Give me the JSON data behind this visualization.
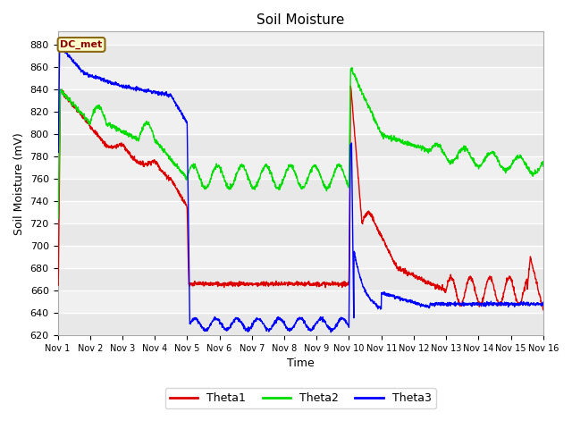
{
  "title": "Soil Moisture",
  "xlabel": "Time",
  "ylabel": "Soil Moisture (mV)",
  "ylim": [
    620,
    892
  ],
  "xlim": [
    0,
    15
  ],
  "xtick_labels": [
    "Nov 1",
    "Nov 2",
    "Nov 3",
    "Nov 4",
    "Nov 5",
    "Nov 6",
    "Nov 7",
    "Nov 8",
    "Nov 9",
    "Nov 10",
    "Nov 11",
    "Nov 12",
    "Nov 13",
    "Nov 14",
    "Nov 15",
    "Nov 16"
  ],
  "xtick_positions": [
    0,
    1,
    2,
    3,
    4,
    5,
    6,
    7,
    8,
    9,
    10,
    11,
    12,
    13,
    14,
    15
  ],
  "annotation_text": "DC_met",
  "legend_labels": [
    "Theta1",
    "Theta2",
    "Theta3"
  ],
  "line_colors": [
    "#dd0000",
    "#00dd00",
    "#0000ff"
  ],
  "title_fontsize": 11,
  "axis_label_fontsize": 9,
  "bg_bands": [
    [
      620,
      640,
      "#e8e8e8"
    ],
    [
      640,
      660,
      "#f0f0f0"
    ],
    [
      660,
      680,
      "#e8e8e8"
    ],
    [
      680,
      700,
      "#f0f0f0"
    ],
    [
      700,
      720,
      "#e8e8e8"
    ],
    [
      720,
      740,
      "#f0f0f0"
    ],
    [
      740,
      760,
      "#e8e8e8"
    ],
    [
      760,
      780,
      "#f0f0f0"
    ],
    [
      780,
      800,
      "#e8e8e8"
    ],
    [
      800,
      820,
      "#f0f0f0"
    ],
    [
      820,
      840,
      "#e8e8e8"
    ],
    [
      840,
      860,
      "#f0f0f0"
    ],
    [
      860,
      880,
      "#e8e8e8"
    ],
    [
      880,
      892,
      "#f0f0f0"
    ]
  ]
}
